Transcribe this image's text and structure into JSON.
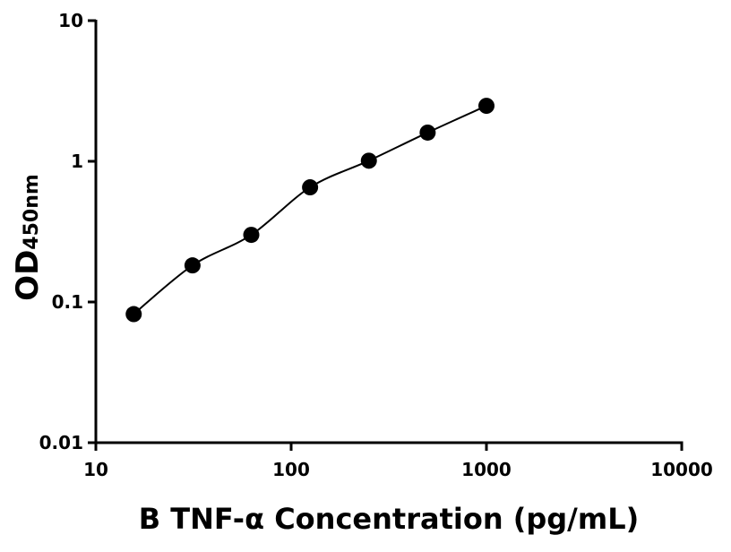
{
  "chart_data": {
    "type": "scatter",
    "xlabel": "B TNF-α Concentration (pg/mL)",
    "ylabel": "OD",
    "ylabel_subscript": "450nm",
    "x": [
      15.625,
      31.25,
      62.5,
      125,
      250,
      500,
      1000
    ],
    "values": [
      0.082,
      0.182,
      0.3,
      0.653,
      1.01,
      1.6,
      2.48
    ],
    "color": "#000000",
    "xscale": "log",
    "yscale": "log",
    "xlim": [
      10,
      10000
    ],
    "ylim": [
      0.01,
      10
    ],
    "xticks": [
      10,
      100,
      1000,
      10000
    ],
    "yticks": [
      0.01,
      0.1,
      1,
      10
    ],
    "fit_line": true
  }
}
